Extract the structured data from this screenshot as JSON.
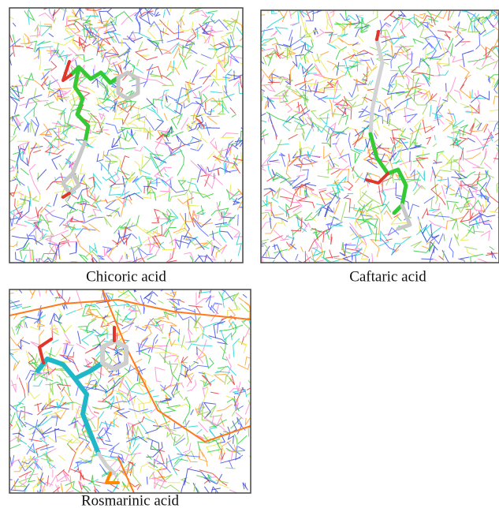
{
  "panels": [
    {
      "caption": "Chicoric acid"
    },
    {
      "caption": "Caftaric acid"
    },
    {
      "caption": "Rosmarinic acid"
    }
  ]
}
